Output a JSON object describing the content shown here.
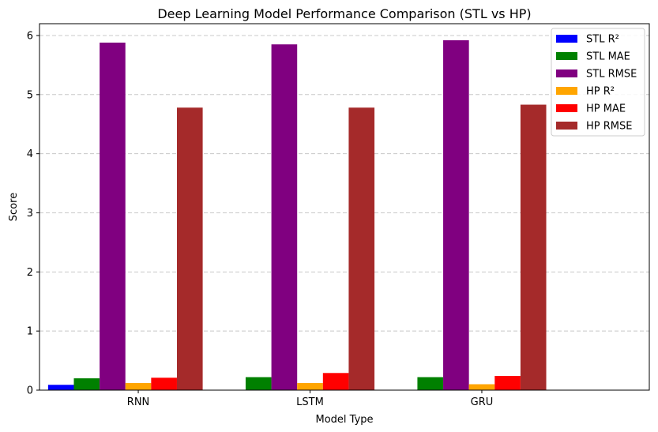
{
  "chart_data": {
    "type": "bar",
    "title": "Deep Learning Model Performance Comparison (STL vs HP)",
    "xlabel": "Model Type",
    "ylabel": "Score",
    "categories": [
      "RNN",
      "LSTM",
      "GRU"
    ],
    "ylim": [
      0,
      6.2
    ],
    "yticks": [
      0,
      1,
      2,
      3,
      4,
      5,
      6
    ],
    "grid": "y-dashed",
    "legend_position": "top-right",
    "series": [
      {
        "name": "STL R²",
        "color": "#0000ff",
        "values": [
          0.09,
          0.0,
          0.0
        ]
      },
      {
        "name": "STL MAE",
        "color": "#008000",
        "values": [
          0.2,
          0.22,
          0.22
        ]
      },
      {
        "name": "STL RMSE",
        "color": "#800080",
        "values": [
          5.88,
          5.85,
          5.92
        ]
      },
      {
        "name": "HP R²",
        "color": "#ffa500",
        "values": [
          0.12,
          0.12,
          0.1
        ]
      },
      {
        "name": "HP MAE",
        "color": "#ff0000",
        "values": [
          0.21,
          0.29,
          0.24
        ]
      },
      {
        "name": "HP RMSE",
        "color": "#a52a2a",
        "values": [
          4.78,
          4.78,
          4.83
        ]
      }
    ]
  }
}
